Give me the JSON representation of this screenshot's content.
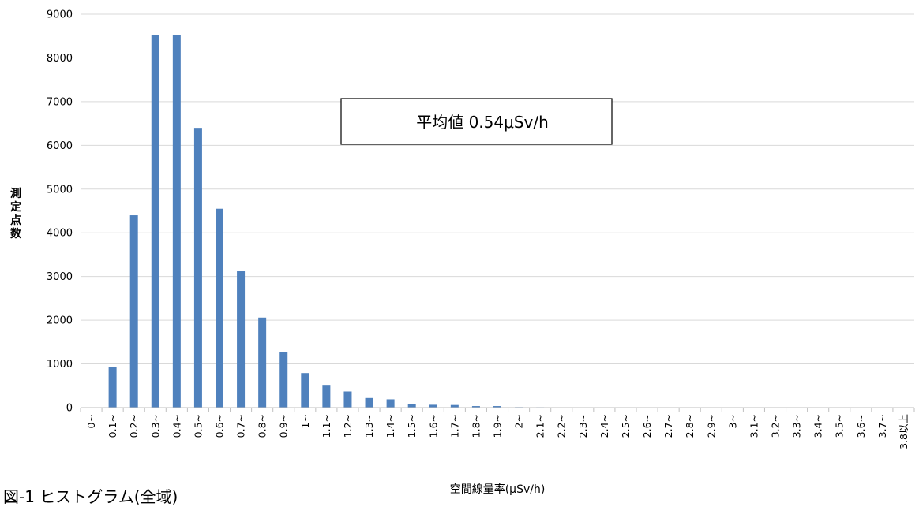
{
  "chart_data": {
    "type": "bar",
    "xlabel": "空間線量率(µSv/h)",
    "ylabel": "測定点数",
    "ylim": [
      0,
      9000
    ],
    "yticks": [
      "0",
      "1000",
      "2000",
      "3000",
      "4000",
      "5000",
      "6000",
      "7000",
      "8000",
      "9000"
    ],
    "grid": true,
    "bar_color": "#4f81bd",
    "categories": [
      "0~",
      "0.1~",
      "0.2~",
      "0.3~",
      "0.4~",
      "0.5~",
      "0.6~",
      "0.7~",
      "0.8~",
      "0.9~",
      "1~",
      "1.1~",
      "1.2~",
      "1.3~",
      "1.4~",
      "1.5~",
      "1.6~",
      "1.7~",
      "1.8~",
      "1.9~",
      "2~",
      "2.1~",
      "2.2~",
      "2.3~",
      "2.4~",
      "2.5~",
      "2.6~",
      "2.7~",
      "2.8~",
      "2.9~",
      "3~",
      "3.1~",
      "3.2~",
      "3.3~",
      "3.4~",
      "3.5~",
      "3.6~",
      "3.7~",
      "3.8以上"
    ],
    "values": [
      0,
      920,
      4400,
      8530,
      8530,
      6400,
      4550,
      3120,
      2060,
      1280,
      790,
      520,
      370,
      220,
      190,
      90,
      65,
      60,
      35,
      35,
      12,
      10,
      8,
      6,
      5,
      4,
      4,
      3,
      3,
      3,
      2,
      2,
      2,
      2,
      2,
      2,
      1,
      1,
      1
    ],
    "annotation": "平均値 0.54μSv/h"
  },
  "caption": "図-1 ヒストグラム(全域)"
}
